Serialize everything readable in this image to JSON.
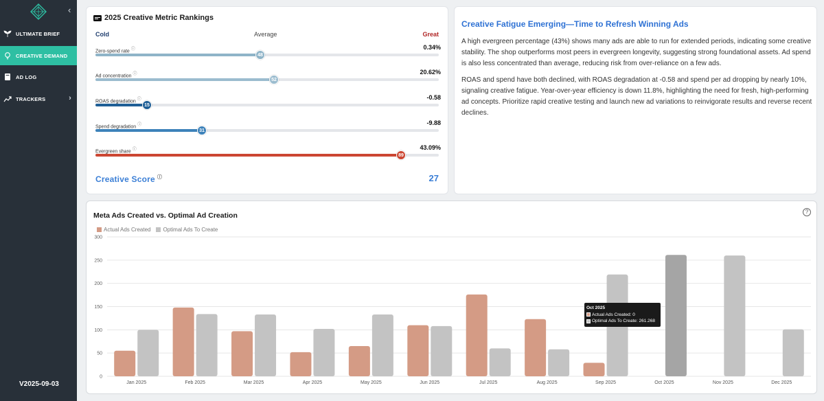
{
  "sidebar": {
    "items": [
      {
        "label": "ULTIMATE BRIEF",
        "icon": "sprout-icon"
      },
      {
        "label": "CREATIVE DEMAND",
        "icon": "lightbulb-icon"
      },
      {
        "label": "AD LOG",
        "icon": "book-icon"
      },
      {
        "label": "TRACKERS",
        "icon": "trend-icon"
      }
    ],
    "version": "V2025-09-03"
  },
  "rankings": {
    "title": "2025 Creative Metric Rankings",
    "scale": {
      "cold": "Cold",
      "average": "Average",
      "great": "Great"
    },
    "metrics": [
      {
        "label": "Zero-spend rate",
        "value": "0.34%",
        "rank": "48",
        "rank_num": 48,
        "color": "#8fb4c8"
      },
      {
        "label": "Ad concentration",
        "value": "20.62%",
        "rank": "52",
        "rank_num": 52,
        "color": "#9bbccf"
      },
      {
        "label": "ROAS degradation",
        "value": "-0.58",
        "rank": "15",
        "rank_num": 15,
        "color": "#1f5f96"
      },
      {
        "label": "Spend degradation",
        "value": "-9.88",
        "rank": "31",
        "rank_num": 31,
        "color": "#3d82ba"
      },
      {
        "label": "Evergreen share",
        "value": "43.09%",
        "rank": "89",
        "rank_num": 89,
        "color": "#cc4632"
      }
    ],
    "score_label": "Creative Score",
    "score_value": "27",
    "info_glyph": "ⓘ"
  },
  "insight": {
    "title": "Creative Fatigue Emerging—Time to Refresh Winning Ads",
    "p1": "A high evergreen percentage (43%) shows many ads are able to run for extended periods, indicating some creative stability. The shop outperforms most peers in evergreen longevity, suggesting strong foundational assets. Ad spend is also less concentrated than average, reducing risk from over-reliance on a few ads.",
    "p2": "ROAS and spend have both declined, with ROAS degradation at -0.58 and spend per ad dropping by nearly 10%, signaling creative fatigue. Year-over-year efficiency is down 11.8%, highlighting the need for fresh, high-performing ad concepts. Prioritize rapid creative testing and launch new ad variations to reinvigorate results and reverse recent declines."
  },
  "chart": {
    "title": "Meta Ads Created vs. Optimal Ad Creation",
    "help": "?",
    "tooltip": {
      "title": "Oct 2025",
      "row1": "Actual Ads Created: 0",
      "row2": "Optimal Ads To Create: 261.268"
    }
  },
  "chart_data": {
    "type": "bar",
    "categories": [
      "Jan 2025",
      "Feb 2025",
      "Mar 2025",
      "Apr 2025",
      "May 2025",
      "Jun 2025",
      "Jul 2025",
      "Aug 2025",
      "Sep 2025",
      "Oct 2025",
      "Nov 2025",
      "Dec 2025"
    ],
    "series": [
      {
        "name": "Actual Ads Created",
        "color": "#d49b85",
        "values": [
          55,
          148,
          97,
          52,
          65,
          110,
          176,
          123,
          29,
          0,
          0,
          0
        ]
      },
      {
        "name": "Optimal Ads To Create",
        "color": "#c3c3c3",
        "values": [
          100,
          134,
          133,
          102,
          133,
          108,
          60,
          58,
          219,
          261.268,
          260,
          101
        ]
      }
    ],
    "highlight": {
      "series": 1,
      "index": 9,
      "color": "#a5a5a5"
    },
    "ylim": [
      0,
      300
    ],
    "yticks": [
      "0",
      "50",
      "100",
      "150",
      "200",
      "250",
      "300"
    ],
    "grid": true,
    "legend": "top-left"
  }
}
